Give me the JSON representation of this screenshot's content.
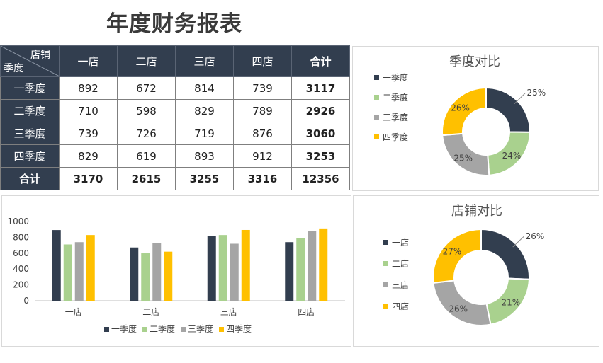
{
  "title": "年度财务报表",
  "table": {
    "corner_top": "店铺",
    "corner_bottom": "季度",
    "columns": [
      "一店",
      "二店",
      "三店",
      "四店",
      "合计"
    ],
    "rows": [
      {
        "label": "一季度",
        "values": [
          "892",
          "672",
          "814",
          "739",
          "3117"
        ]
      },
      {
        "label": "二季度",
        "values": [
          "710",
          "598",
          "829",
          "789",
          "2926"
        ]
      },
      {
        "label": "三季度",
        "values": [
          "739",
          "726",
          "719",
          "876",
          "3060"
        ]
      },
      {
        "label": "四季度",
        "values": [
          "829",
          "619",
          "893",
          "912",
          "3253"
        ]
      },
      {
        "label": "合计",
        "values": [
          "3170",
          "2615",
          "3255",
          "3316",
          "12356"
        ]
      }
    ]
  },
  "colors": {
    "navy": "#323e4f",
    "green": "#a9d18e",
    "gray": "#a5a5a5",
    "gold": "#ffc000"
  },
  "chart_data": [
    {
      "type": "pie",
      "title": "季度对比",
      "labels": [
        "一季度",
        "二季度",
        "三季度",
        "四季度"
      ],
      "values": [
        3117,
        2926,
        3060,
        3253
      ],
      "data_labels": [
        "25%",
        "24%",
        "25%",
        "26%"
      ],
      "colors": [
        "#323e4f",
        "#a9d18e",
        "#a5a5a5",
        "#ffc000"
      ],
      "legend": "left"
    },
    {
      "type": "bar",
      "title": "",
      "categories": [
        "一店",
        "二店",
        "三店",
        "四店"
      ],
      "series": [
        {
          "name": "一季度",
          "values": [
            892,
            672,
            814,
            739
          ],
          "color": "#323e4f"
        },
        {
          "name": "二季度",
          "values": [
            710,
            598,
            829,
            789
          ],
          "color": "#a9d18e"
        },
        {
          "name": "三季度",
          "values": [
            739,
            726,
            719,
            876
          ],
          "color": "#a5a5a5"
        },
        {
          "name": "四季度",
          "values": [
            829,
            619,
            893,
            912
          ],
          "color": "#ffc000"
        }
      ],
      "ylim": [
        0,
        1000
      ],
      "yticks": [
        "0",
        "200",
        "400",
        "600",
        "800",
        "1000"
      ],
      "grid": false,
      "legend": "bottom"
    },
    {
      "type": "pie",
      "title": "店铺对比",
      "labels": [
        "一店",
        "二店",
        "三店",
        "四店"
      ],
      "values": [
        3170,
        2615,
        3255,
        3316
      ],
      "data_labels": [
        "26%",
        "21%",
        "26%",
        "27%"
      ],
      "colors": [
        "#323e4f",
        "#a9d18e",
        "#a5a5a5",
        "#ffc000"
      ],
      "legend": "left"
    }
  ]
}
